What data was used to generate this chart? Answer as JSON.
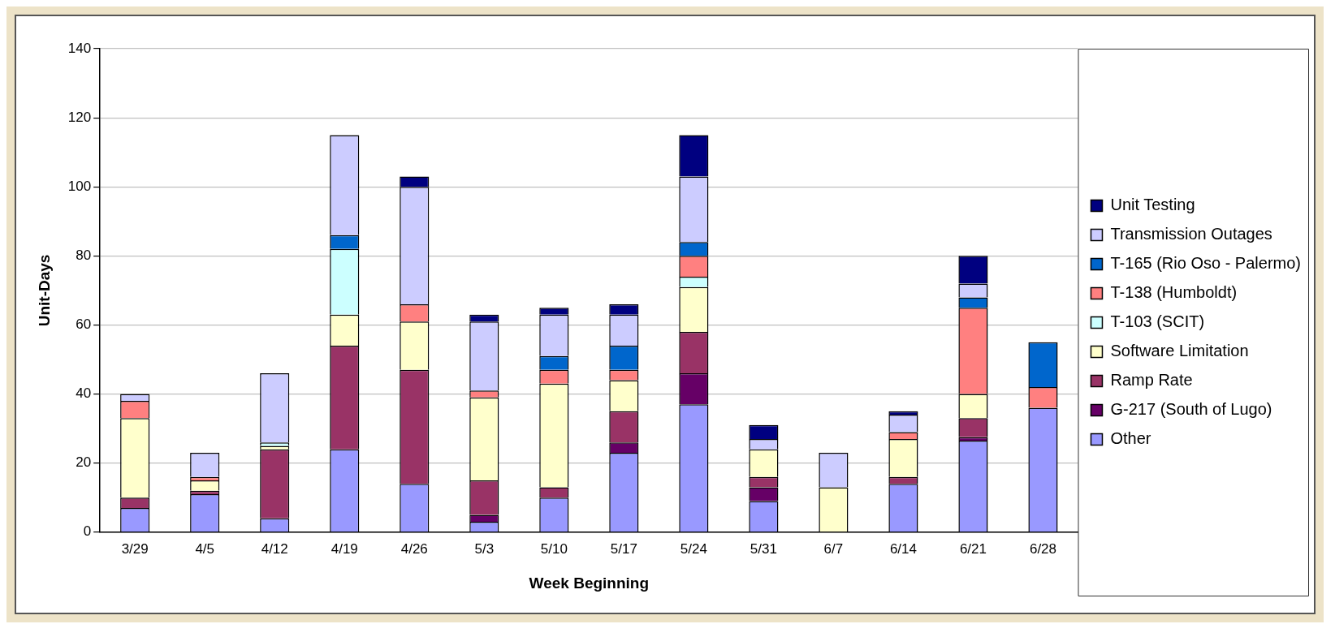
{
  "chart_data": {
    "type": "bar",
    "stacked": true,
    "xlabel": "Week Beginning",
    "ylabel": "Unit-Days",
    "categories": [
      "3/29",
      "4/5",
      "4/12",
      "4/19",
      "4/26",
      "5/3",
      "5/10",
      "5/17",
      "5/24",
      "5/31",
      "6/7",
      "6/14",
      "6/21",
      "6/28"
    ],
    "ylim": [
      0,
      140
    ],
    "yticks": [
      0,
      20,
      40,
      60,
      80,
      100,
      120,
      140
    ],
    "grid": "y",
    "legend": "right",
    "series": [
      {
        "name": "Other",
        "color": "#9999ff",
        "values": [
          7,
          11,
          4,
          24,
          14,
          3,
          10,
          23,
          37,
          9,
          0,
          14,
          26.5,
          36
        ]
      },
      {
        "name": "G-217 (South of Lugo)",
        "color": "#660066",
        "values": [
          0,
          0,
          0,
          0,
          0,
          2,
          0,
          3,
          9,
          4,
          0,
          0,
          1,
          0
        ]
      },
      {
        "name": "Ramp Rate",
        "color": "#993366",
        "values": [
          3,
          1,
          20,
          30,
          33,
          10,
          3,
          9,
          12,
          3,
          0,
          2,
          5.5,
          0
        ]
      },
      {
        "name": "Software Limitation",
        "color": "#ffffcc",
        "values": [
          23,
          3,
          1,
          9,
          14,
          24,
          30,
          9,
          13,
          8,
          13,
          11,
          7,
          0
        ]
      },
      {
        "name": "T-103 (SCIT)",
        "color": "#ccffff",
        "values": [
          0,
          0,
          1,
          19,
          0,
          0,
          0,
          0,
          3,
          0,
          0,
          0,
          0,
          0
        ]
      },
      {
        "name": "T-138 (Humboldt)",
        "color": "#ff8080",
        "values": [
          5,
          1,
          0,
          0,
          5,
          2,
          4,
          3,
          6,
          0,
          0,
          2,
          25,
          6
        ]
      },
      {
        "name": "T-165 (Rio Oso - Palermo)",
        "color": "#0066cc",
        "values": [
          0,
          0,
          0,
          4,
          0,
          0,
          4,
          7,
          4,
          0,
          0,
          0,
          3,
          13
        ]
      },
      {
        "name": "Transmission Outages",
        "color": "#ccccff",
        "values": [
          2,
          7,
          20,
          29,
          34,
          20,
          12,
          9,
          19,
          3,
          10,
          5,
          4,
          0
        ]
      },
      {
        "name": "Unit Testing",
        "color": "#000080",
        "values": [
          0,
          0,
          0,
          0,
          3,
          2,
          2,
          3,
          12,
          4,
          0,
          1,
          8,
          0
        ]
      }
    ]
  }
}
